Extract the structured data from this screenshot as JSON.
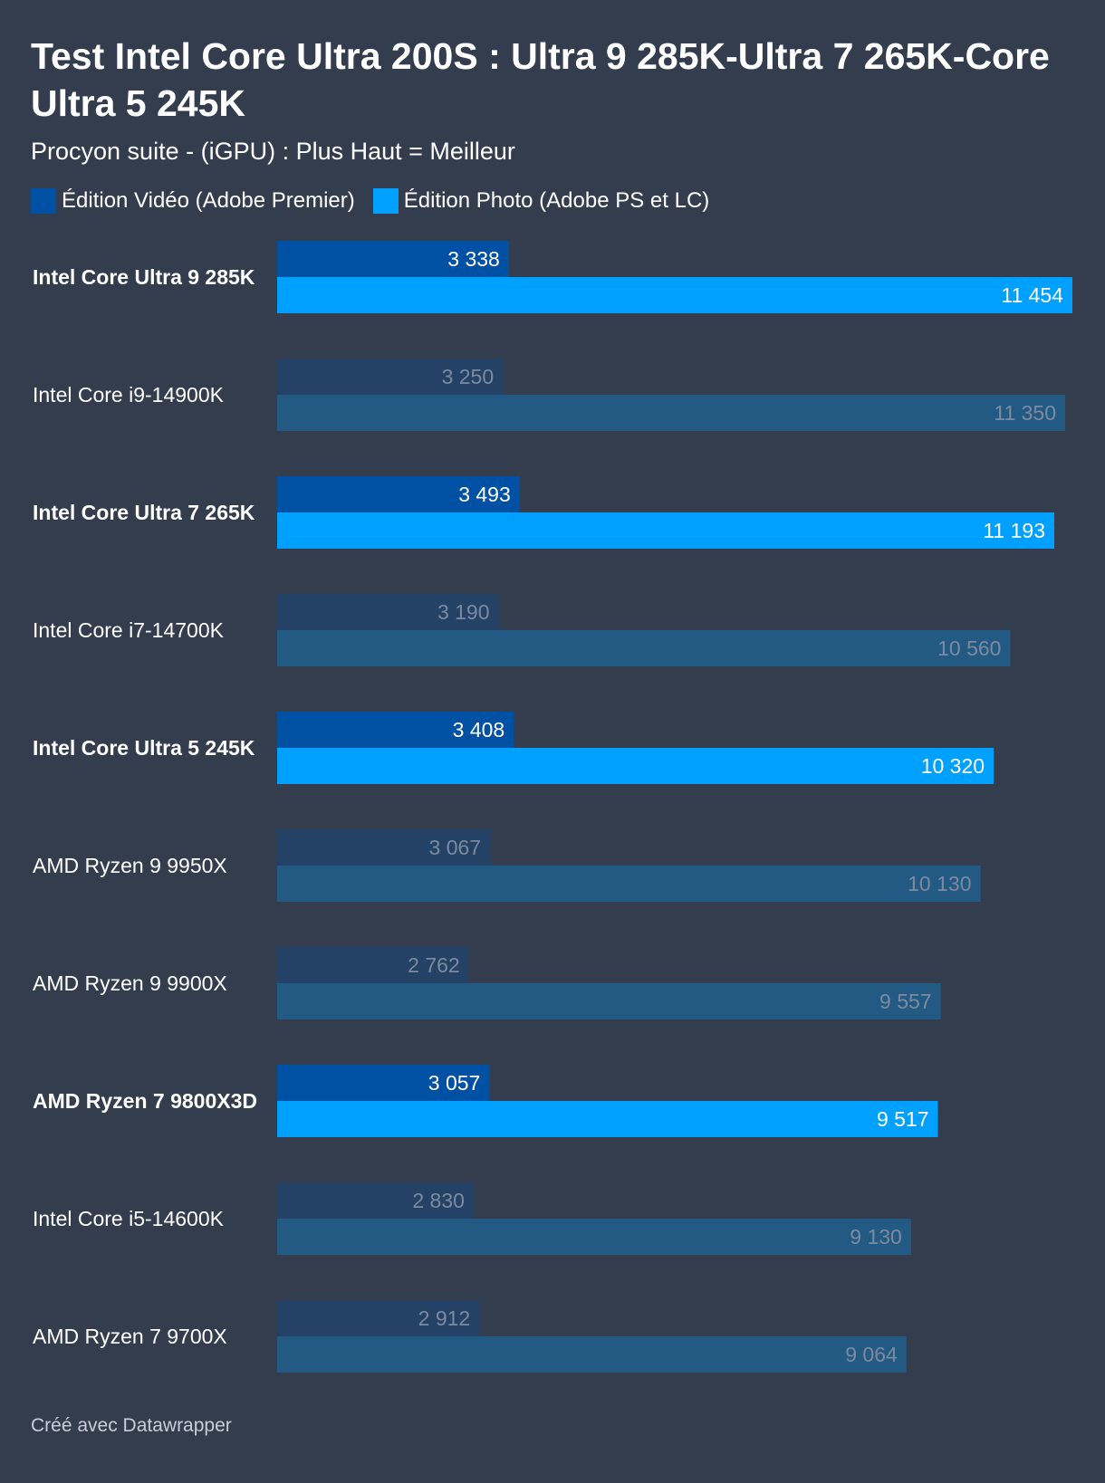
{
  "title": "Test Intel Core Ultra 200S : Ultra 9 285K-Ultra 7 265K-Core Ultra 5 245K",
  "subtitle": "Procyon suite - (iGPU) : Plus Haut = Meilleur",
  "footer": "Créé avec Datawrapper",
  "colors": {
    "background": "#333d4e",
    "video_highlight": "#0050a4",
    "photo_highlight": "#00a0ff",
    "video_muted": "#244166",
    "photo_muted": "#235a84",
    "label_muted": "#7c8aa0"
  },
  "chart_data": {
    "type": "bar",
    "orientation": "horizontal",
    "categories": [
      "Intel Core Ultra 9 285K",
      "Intel Core i9-14900K",
      "Intel Core Ultra 7 265K",
      "Intel Core i7-14700K",
      "Intel Core Ultra 5 245K",
      "AMD Ryzen 9 9950X",
      "AMD Ryzen 9 9900X",
      "AMD Ryzen 7 9800X3D",
      "Intel Core i5-14600K",
      "AMD Ryzen 7 9700X"
    ],
    "highlighted": [
      true,
      false,
      true,
      false,
      true,
      false,
      false,
      true,
      false,
      false
    ],
    "series": [
      {
        "name": "Édition Vidéo (Adobe Premier)",
        "values": [
          3338,
          3250,
          3493,
          3190,
          3408,
          3067,
          2762,
          3057,
          2830,
          2912
        ],
        "labels": [
          "3 338",
          "3 250",
          "3 493",
          "3 190",
          "3 408",
          "3 067",
          "2 762",
          "3 057",
          "2 830",
          "2 912"
        ]
      },
      {
        "name": "Édition Photo (Adobe PS et LC)",
        "values": [
          11454,
          11350,
          11193,
          10560,
          10320,
          10130,
          9557,
          9517,
          9130,
          9064
        ],
        "labels": [
          "11 454",
          "11 350",
          "11 193",
          "10 560",
          "10 320",
          "10 130",
          "9 557",
          "9 517",
          "9 130",
          "9 064"
        ]
      }
    ],
    "xlim": [
      0,
      11454
    ],
    "legend_position": "top-left",
    "grid": false
  }
}
